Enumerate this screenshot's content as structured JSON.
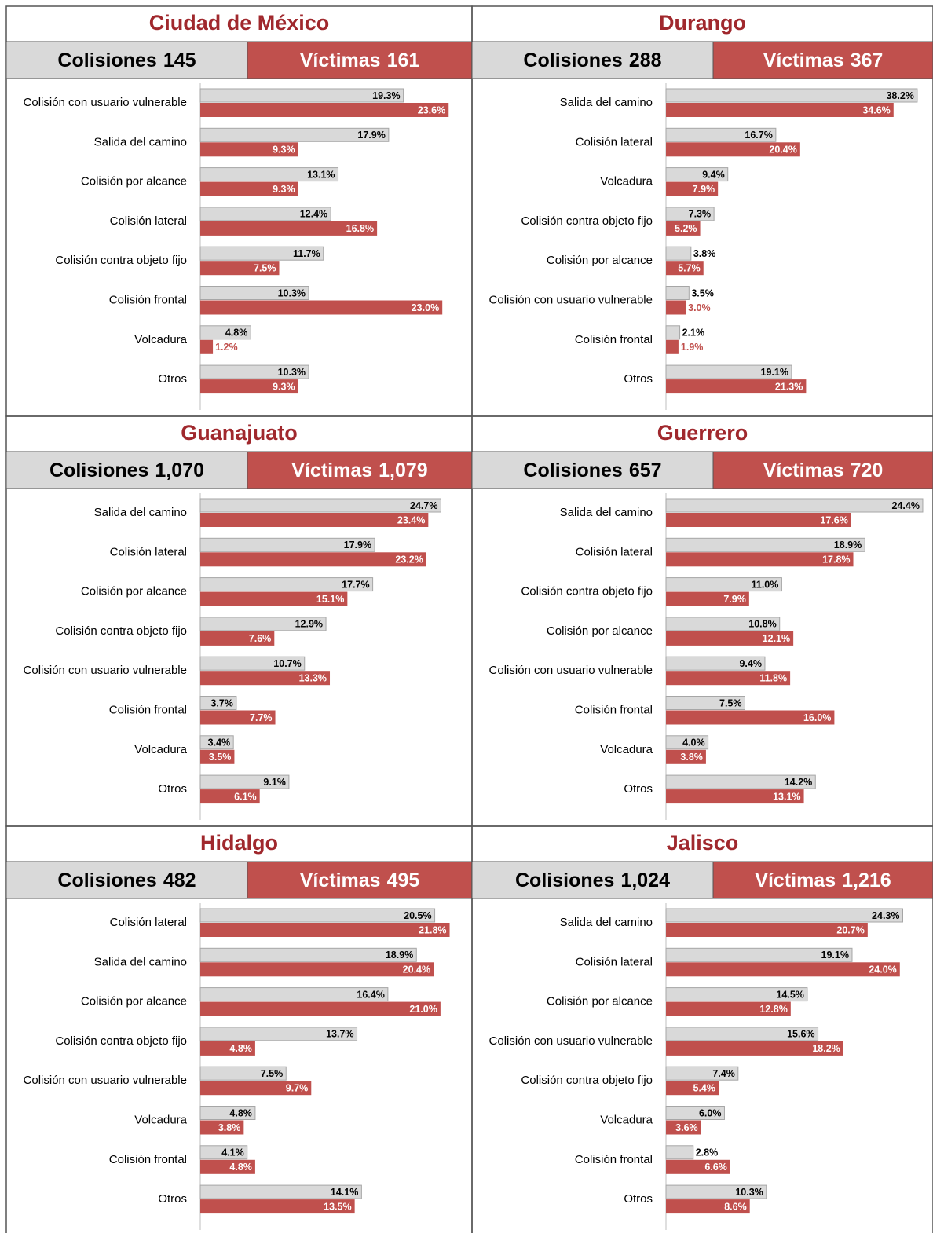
{
  "chart_data": [
    {
      "type": "bar",
      "title": "Ciudad de México",
      "xlim": [
        0,
        25
      ],
      "categories": [
        "Colisión con usuario vulnerable",
        "Salida del camino",
        "Colisión por alcance",
        "Colisión lateral",
        "Colisión contra objeto fijo",
        "Colisión frontal",
        "Volcadura",
        "Otros"
      ],
      "series": [
        {
          "name": "Colisiones",
          "total": 145,
          "color": "#d9d9d9",
          "values": [
            19.3,
            17.9,
            13.1,
            12.4,
            11.7,
            10.3,
            4.8,
            10.3
          ],
          "value_labels": [
            "19.3%",
            "17.9%",
            "13.1%",
            "12.4%",
            "11.7%",
            "10.3%",
            "4.8%",
            "10.3%"
          ]
        },
        {
          "name": "Víctimas",
          "total": 161,
          "color": "#c0504d",
          "values": [
            23.6,
            9.3,
            9.3,
            16.8,
            7.5,
            23.0,
            1.2,
            9.3
          ],
          "value_labels": [
            "23.6%",
            "9.3%",
            "9.3%",
            "16.8%",
            "7.5%",
            "23.0%",
            "1.2%",
            "9.3%"
          ]
        }
      ]
    },
    {
      "type": "bar",
      "title": "Durango",
      "xlim": [
        0,
        40
      ],
      "categories": [
        "Salida del camino",
        "Colisión lateral",
        "Volcadura",
        "Colisión contra objeto fijo",
        "Colisión por alcance",
        "Colisión con usuario vulnerable",
        "Colisión frontal",
        "Otros"
      ],
      "series": [
        {
          "name": "Colisiones",
          "total": 288,
          "color": "#d9d9d9",
          "values": [
            38.2,
            16.7,
            9.4,
            7.3,
            3.8,
            3.5,
            2.1,
            19.1
          ],
          "value_labels": [
            "38.2%",
            "16.7%",
            "9.4%",
            "7.3%",
            "3.8%",
            "3.5%",
            "2.1%",
            "19.1%"
          ]
        },
        {
          "name": "Víctimas",
          "total": 367,
          "color": "#c0504d",
          "values": [
            34.6,
            20.4,
            7.9,
            5.2,
            5.7,
            3.0,
            1.9,
            21.3
          ],
          "value_labels": [
            "34.6%",
            "20.4%",
            "7.9%",
            "5.2%",
            "5.7%",
            "3.0%",
            "1.9%",
            "21.3%"
          ]
        }
      ]
    },
    {
      "type": "bar",
      "title": "Guanajuato",
      "xlim": [
        0,
        27
      ],
      "categories": [
        "Salida del camino",
        "Colisión lateral",
        "Colisión por alcance",
        "Colisión contra objeto fijo",
        "Colisión con usuario vulnerable",
        "Colisión frontal",
        "Volcadura",
        "Otros"
      ],
      "series": [
        {
          "name": "Colisiones",
          "total": {
            "value": 1070,
            "label": "1,070"
          },
          "color": "#d9d9d9",
          "values": [
            24.7,
            17.9,
            17.7,
            12.9,
            10.7,
            3.7,
            3.4,
            9.1
          ],
          "value_labels": [
            "24.7%",
            "17.9%",
            "17.7%",
            "12.9%",
            "10.7%",
            "3.7%",
            "3.4%",
            "9.1%"
          ]
        },
        {
          "name": "Víctimas",
          "total": {
            "value": 1079,
            "label": "1,079"
          },
          "color": "#c0504d",
          "values": [
            23.4,
            23.2,
            15.1,
            7.6,
            13.3,
            7.7,
            3.5,
            6.1
          ],
          "value_labels": [
            "23.4%",
            "23.2%",
            "15.1%",
            "7.6%",
            "13.3%",
            "7.7%",
            "3.5%",
            "6.1%"
          ]
        }
      ]
    },
    {
      "type": "bar",
      "title": "Guerrero",
      "xlim": [
        0,
        25
      ],
      "categories": [
        "Salida del camino",
        "Colisión lateral",
        "Colisión contra objeto fijo",
        "Colisión por alcance",
        "Colisión con usuario vulnerable",
        "Colisión frontal",
        "Volcadura",
        "Otros"
      ],
      "series": [
        {
          "name": "Colisiones",
          "total": 657,
          "color": "#d9d9d9",
          "values": [
            24.4,
            18.9,
            11.0,
            10.8,
            9.4,
            7.5,
            4.0,
            14.2
          ],
          "value_labels": [
            "24.4%",
            "18.9%",
            "11.0%",
            "10.8%",
            "9.4%",
            "7.5%",
            "4.0%",
            "14.2%"
          ]
        },
        {
          "name": "Víctimas",
          "total": 720,
          "color": "#c0504d",
          "values": [
            17.6,
            17.8,
            7.9,
            12.1,
            11.8,
            16.0,
            3.8,
            13.1
          ],
          "value_labels": [
            "17.6%",
            "17.8%",
            "7.9%",
            "12.1%",
            "11.8%",
            "16.0%",
            "3.8%",
            "13.1%"
          ]
        }
      ]
    },
    {
      "type": "bar",
      "title": "Hidalgo",
      "xlim": [
        0,
        23
      ],
      "categories": [
        "Colisión lateral",
        "Salida del camino",
        "Colisión por alcance",
        "Colisión contra objeto fijo",
        "Colisión con usuario vulnerable",
        "Volcadura",
        "Colisión frontal",
        "Otros"
      ],
      "series": [
        {
          "name": "Colisiones",
          "total": 482,
          "color": "#d9d9d9",
          "values": [
            20.5,
            18.9,
            16.4,
            13.7,
            7.5,
            4.8,
            4.1,
            14.1
          ],
          "value_labels": [
            "20.5%",
            "18.9%",
            "16.4%",
            "13.7%",
            "7.5%",
            "4.8%",
            "4.1%",
            "14.1%"
          ]
        },
        {
          "name": "Víctimas",
          "total": 495,
          "color": "#c0504d",
          "values": [
            21.8,
            20.4,
            21.0,
            4.8,
            9.7,
            3.8,
            4.8,
            13.5
          ],
          "value_labels": [
            "21.8%",
            "20.4%",
            "21.0%",
            "4.8%",
            "9.7%",
            "3.8%",
            "4.8%",
            "13.5%"
          ]
        }
      ]
    },
    {
      "type": "bar",
      "title": "Jalisco",
      "xlim": [
        0,
        27
      ],
      "categories": [
        "Salida del camino",
        "Colisión lateral",
        "Colisión por alcance",
        "Colisión con usuario vulnerable",
        "Colisión contra objeto fijo",
        "Volcadura",
        "Colisión frontal",
        "Otros"
      ],
      "series": [
        {
          "name": "Colisiones",
          "total": {
            "value": 1024,
            "label": "1,024"
          },
          "color": "#d9d9d9",
          "values": [
            24.3,
            19.1,
            14.5,
            15.6,
            7.4,
            6.0,
            2.8,
            10.3
          ],
          "value_labels": [
            "24.3%",
            "19.1%",
            "14.5%",
            "15.6%",
            "7.4%",
            "6.0%",
            "2.8%",
            "10.3%"
          ]
        },
        {
          "name": "Víctimas",
          "total": {
            "value": 1216,
            "label": "1,216"
          },
          "color": "#c0504d",
          "values": [
            20.7,
            24.0,
            12.8,
            18.2,
            5.4,
            3.6,
            6.6,
            8.6
          ],
          "value_labels": [
            "20.7%",
            "24.0%",
            "12.8%",
            "18.2%",
            "5.4%",
            "3.6%",
            "6.6%",
            "8.6%"
          ]
        }
      ]
    }
  ]
}
